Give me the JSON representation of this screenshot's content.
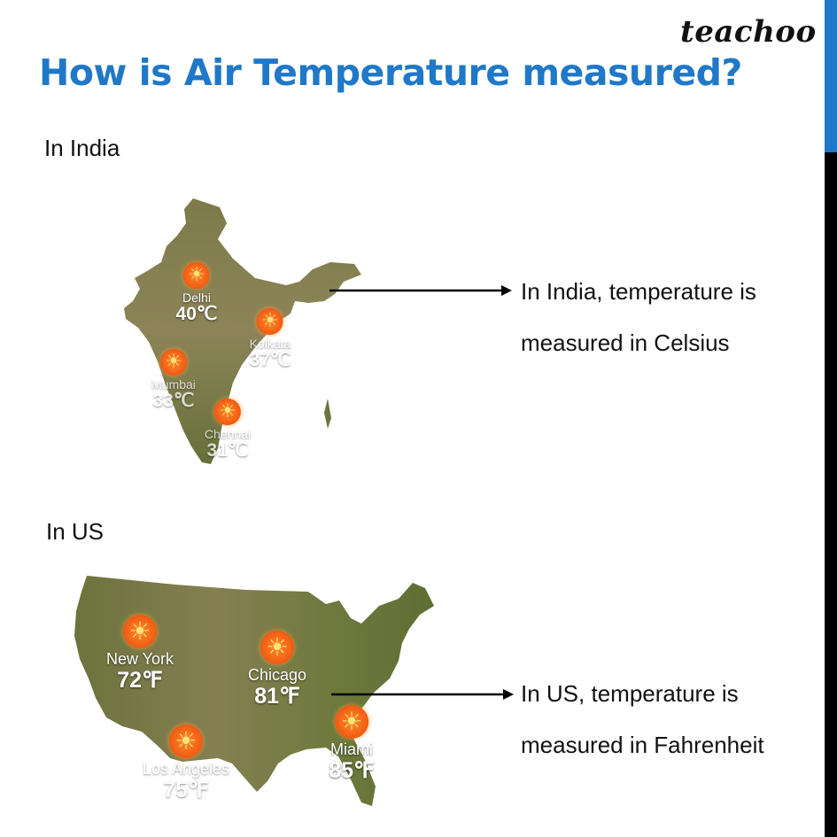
{
  "brand": "teachoo",
  "title": "How is Air Temperature measured?",
  "colors": {
    "title": "#1f78c8",
    "accent": "#1f78c8",
    "sun": "#f05a12",
    "map_land": "#6f7a3e"
  },
  "india": {
    "label": "In India",
    "description": [
      "In India, temperature is",
      "measured in Celsius"
    ],
    "cities": [
      {
        "name": "Delhi",
        "temp": "40℃"
      },
      {
        "name": "Kolkata",
        "temp": "37℃"
      },
      {
        "name": "Mumbai",
        "temp": "33℃"
      },
      {
        "name": "Chennai",
        "temp": "31℃"
      }
    ]
  },
  "us": {
    "label": "In US",
    "description": [
      "In US, temperature is",
      "measured in Fahrenheit"
    ],
    "cities": [
      {
        "name": "New York",
        "temp": "72℉"
      },
      {
        "name": "Chicago",
        "temp": "81℉"
      },
      {
        "name": "Los Angeles",
        "temp": "75℉"
      },
      {
        "name": "Miami",
        "temp": "85℉"
      }
    ]
  },
  "icons": {
    "sun": "sun-icon",
    "arrow": "arrow-right-icon"
  }
}
